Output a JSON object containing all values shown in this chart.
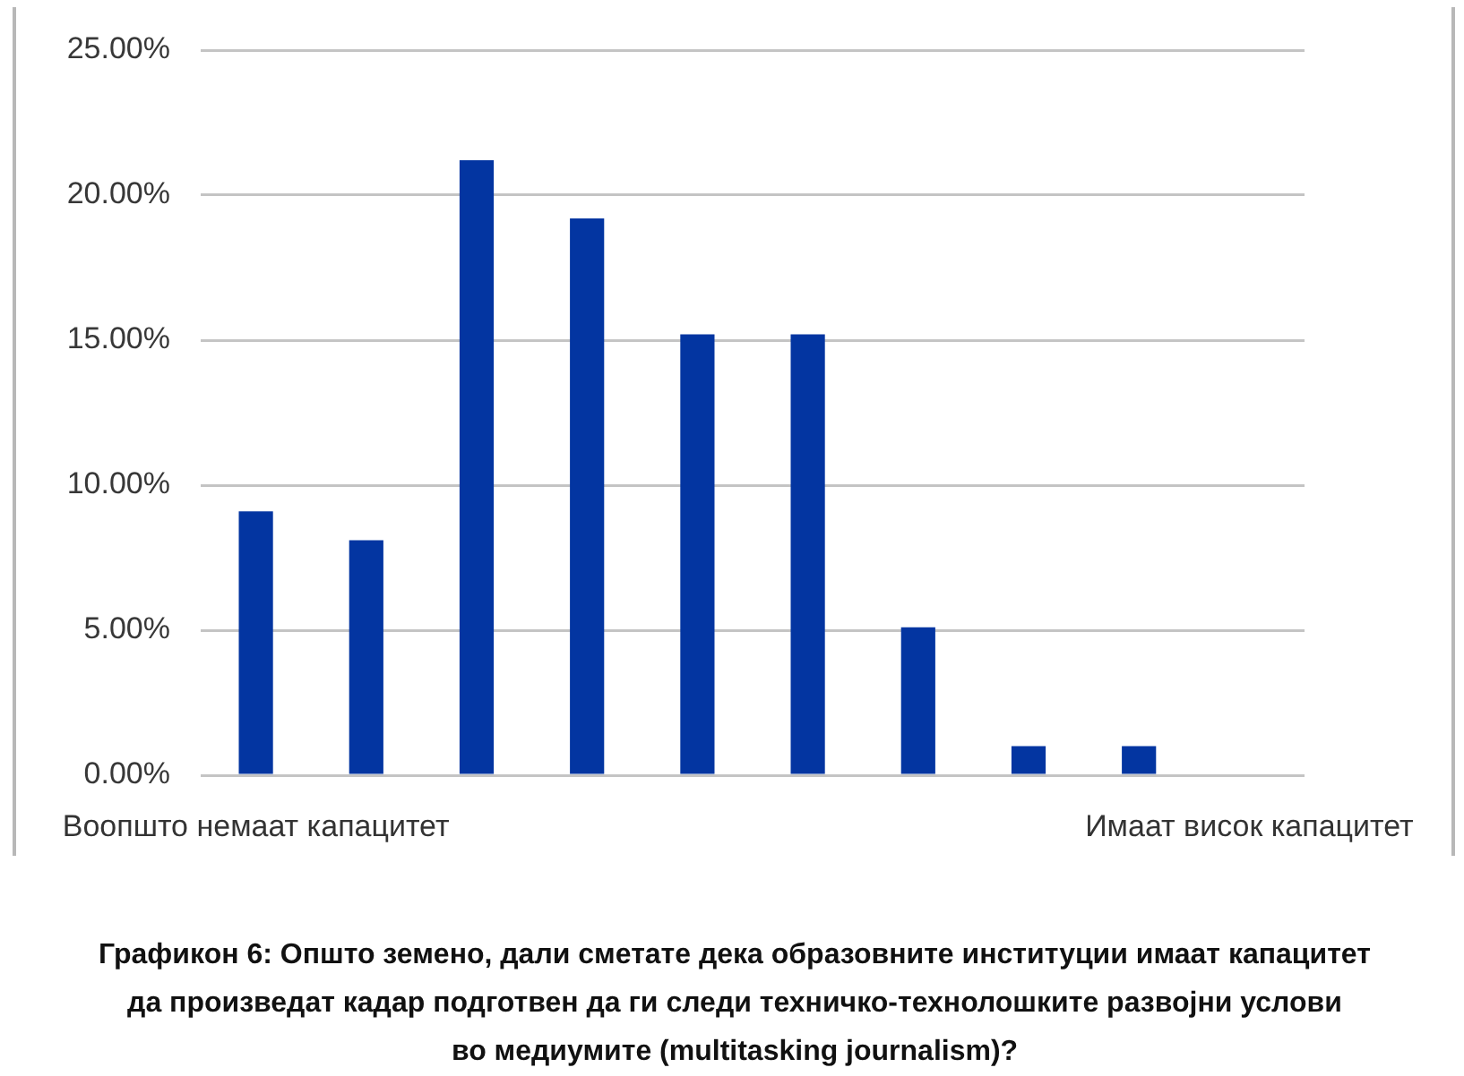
{
  "chart_data": {
    "type": "bar",
    "categories": [
      "Воопшто немаат капацитет",
      null,
      null,
      null,
      null,
      null,
      null,
      null,
      null,
      "Имаат висок капацитет"
    ],
    "values": [
      9.1,
      8.1,
      21.2,
      19.2,
      15.2,
      15.2,
      5.1,
      1.0,
      1.0,
      0
    ],
    "color": "#0335a1",
    "ylim": [
      0,
      25
    ],
    "yticks": [
      {
        "value": 0,
        "label": "0.00%"
      },
      {
        "value": 5,
        "label": "5.00%"
      },
      {
        "value": 10,
        "label": "10.00%"
      },
      {
        "value": 15,
        "label": "15.00%"
      },
      {
        "value": 20,
        "label": "20.00%"
      },
      {
        "value": 25,
        "label": "25.00%"
      }
    ],
    "grid": "y",
    "annotations": [
      "Графикон 6: Општо земено, дали сметате дека образовните институции имаат капацитет\nда произведат кадар подготвен да ги следи техничко-технолошките развојни услови\nво медиумите (multitasking journalism)?"
    ]
  }
}
